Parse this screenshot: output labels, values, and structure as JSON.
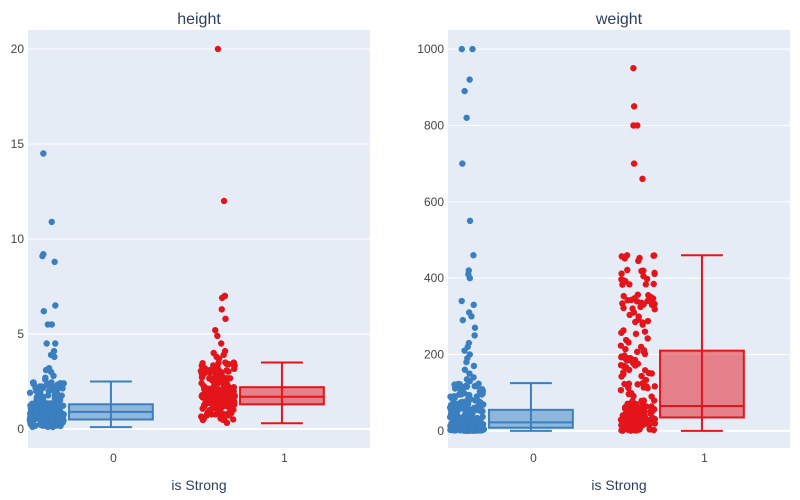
{
  "chart_data": [
    {
      "type": "box",
      "title": "height",
      "xlabel": "is Strong",
      "ylabel": "",
      "categories": [
        "0",
        "1"
      ],
      "ylim": [
        -1,
        21
      ],
      "yticks": [
        0,
        5,
        10,
        15,
        20
      ],
      "grid": true,
      "legend": "none",
      "series": [
        {
          "category": "0",
          "color": "#3a7fbf",
          "box": {
            "min": 0.1,
            "q1": 0.5,
            "median": 0.9,
            "q3": 1.3,
            "max": 2.5
          },
          "outliers": [
            14.5,
            10.9,
            9.2,
            9.1,
            8.8,
            6.5,
            6.2,
            5.5,
            5.5,
            4.5,
            4.5,
            4.1,
            3.9,
            3.8,
            3.2,
            3.1,
            3.0,
            2.8,
            2.7,
            2.6
          ]
        },
        {
          "category": "1",
          "color": "#e4141b",
          "box": {
            "min": 0.3,
            "q1": 1.3,
            "median": 1.7,
            "q3": 2.2,
            "max": 3.5
          },
          "outliers": [
            20.0,
            12.0,
            7.0,
            7.0,
            6.9,
            6.3,
            5.8,
            5.2,
            4.9,
            4.5,
            4.1,
            4.0,
            3.9,
            3.8,
            3.7
          ]
        }
      ]
    },
    {
      "type": "box",
      "title": "weight",
      "xlabel": "is Strong",
      "ylabel": "",
      "categories": [
        "0",
        "1"
      ],
      "ylim": [
        -45,
        1050
      ],
      "yticks": [
        0,
        200,
        400,
        600,
        800,
        1000
      ],
      "grid": true,
      "legend": "none",
      "series": [
        {
          "category": "0",
          "color": "#3a7fbf",
          "box": {
            "min": 0,
            "q1": 8,
            "median": 22,
            "q3": 55,
            "max": 125
          },
          "outliers": [
            1000,
            1000,
            920,
            890,
            820,
            700,
            550,
            460,
            420,
            410,
            400,
            340,
            330,
            310,
            300,
            290,
            270,
            250,
            230,
            220,
            210,
            200,
            190,
            180,
            170,
            160,
            150,
            140,
            135,
            130
          ]
        },
        {
          "category": "1",
          "color": "#e4141b",
          "box": {
            "min": 0,
            "q1": 35,
            "median": 65,
            "q3": 210,
            "max": 460
          },
          "outliers": [
            950,
            850,
            800,
            800,
            700,
            660
          ]
        }
      ]
    }
  ]
}
